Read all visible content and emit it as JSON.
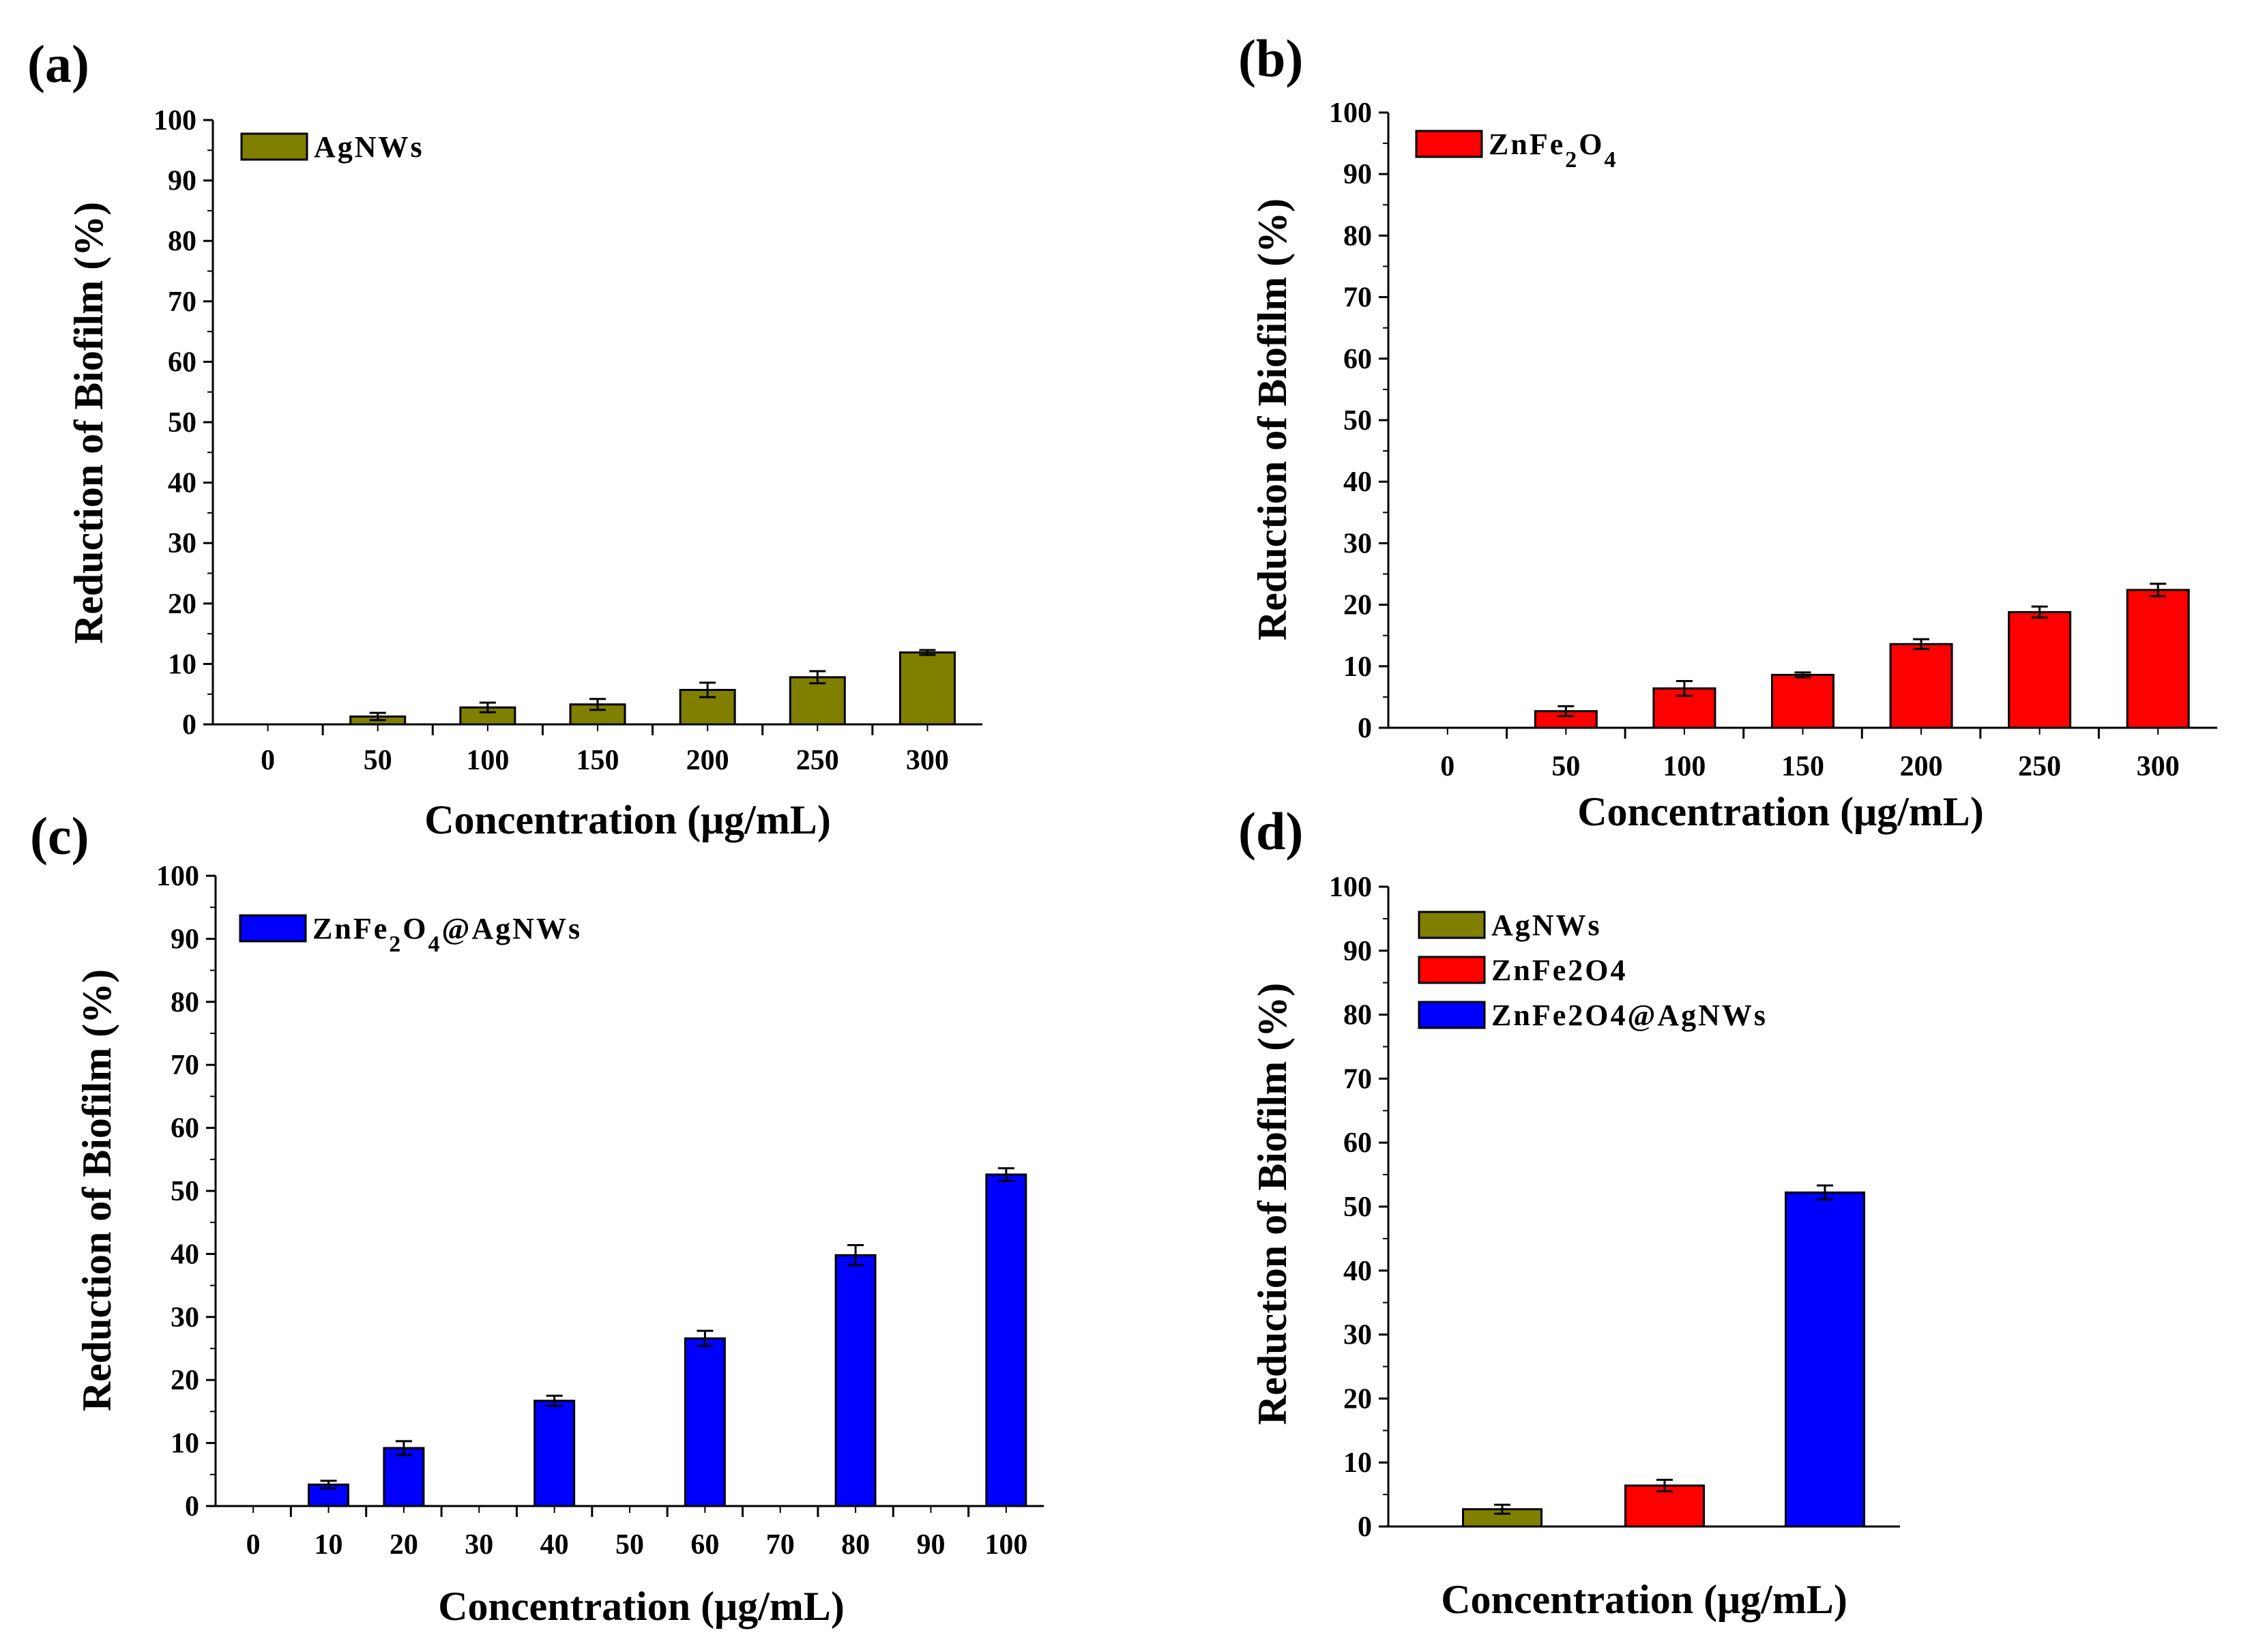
{
  "chart_data": [
    {
      "panel": "(a)",
      "type": "bar",
      "categories": [
        "0",
        "50",
        "100",
        "150",
        "200",
        "250",
        "300"
      ],
      "values": [
        0,
        1.3,
        2.8,
        3.3,
        5.7,
        7.8,
        11.9
      ],
      "errors": [
        0,
        0.6,
        0.8,
        0.9,
        1.2,
        1.0,
        0.4
      ],
      "legend": [
        {
          "label": "AgNWs",
          "color": "#807f00"
        }
      ],
      "xlabel": "Concentration (μg/mL)",
      "ylabel": "Reduction of Biofilm (%)",
      "ylim": [
        0,
        100
      ],
      "yticks": [
        0,
        10,
        20,
        30,
        40,
        50,
        60,
        70,
        80,
        90,
        100
      ],
      "legend_position": "top-left"
    },
    {
      "panel": "(b)",
      "type": "bar",
      "categories": [
        "0",
        "50",
        "100",
        "150",
        "200",
        "250",
        "300"
      ],
      "values": [
        0,
        2.7,
        6.4,
        8.6,
        13.6,
        18.8,
        22.4
      ],
      "errors": [
        0,
        0.8,
        1.2,
        0.4,
        0.8,
        0.9,
        1.0
      ],
      "legend": [
        {
          "label": "ZnFe",
          "sub1": "2",
          "mid": "O",
          "sub2": "4",
          "color": "#ff0000"
        }
      ],
      "xlabel": "Concentration (μg/mL)",
      "ylabel": "Reduction of Biofilm (%)",
      "ylim": [
        0,
        100
      ],
      "yticks": [
        0,
        10,
        20,
        30,
        40,
        50,
        60,
        70,
        80,
        90,
        100
      ],
      "legend_position": "top-left"
    },
    {
      "panel": "(c)",
      "type": "bar",
      "categories": [
        "0",
        "10",
        "20",
        "30",
        "40",
        "50",
        "60",
        "70",
        "80",
        "90",
        "100"
      ],
      "values": [
        0,
        3.4,
        9.2,
        0,
        16.7,
        0,
        26.6,
        0,
        39.8,
        0,
        52.6
      ],
      "errors": [
        0,
        0.6,
        1.1,
        0,
        0.8,
        0,
        1.2,
        0,
        1.6,
        0,
        1.0
      ],
      "legend": [
        {
          "label": "ZnFe",
          "sub1": "2",
          "mid": "O",
          "sub2": "4",
          "tail": "@AgNWs",
          "color": "#0000ff"
        }
      ],
      "xlabel": "Concentration (μg/mL)",
      "ylabel": "Reduction of Biofilm (%)",
      "ylim": [
        0,
        100
      ],
      "yticks": [
        0,
        10,
        20,
        30,
        40,
        50,
        60,
        70,
        80,
        90,
        100
      ],
      "legend_position": "top-left"
    },
    {
      "panel": "(d)",
      "type": "bar",
      "series": [
        {
          "name": "AgNWs",
          "value": 2.7,
          "error": 0.7,
          "color": "#807f00"
        },
        {
          "name": "ZnFe2O4",
          "value": 6.4,
          "error": 0.9,
          "color": "#ff0000"
        },
        {
          "name": "ZnFe2O4@AgNWs",
          "value": 52.2,
          "error": 1.1,
          "color": "#0000ff"
        }
      ],
      "xlabel": "Concentration (μg/mL)",
      "ylabel": "Reduction of Biofilm (%)",
      "ylim": [
        0,
        100
      ],
      "yticks": [
        0,
        10,
        20,
        30,
        40,
        50,
        60,
        70,
        80,
        90,
        100
      ],
      "legend_position": "top-left"
    }
  ]
}
